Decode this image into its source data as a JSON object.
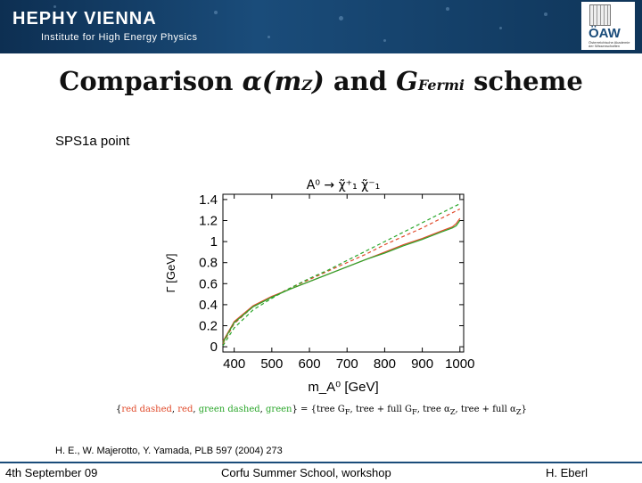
{
  "header": {
    "brand": "HEPHY VIENNA",
    "institute": "Institute for High Energy Physics",
    "logo_text": "ÖAW",
    "logo_sub": "Österreichische Akademie der Wissenschaften"
  },
  "slide": {
    "title_prefix": "Comparison",
    "title_mid": "and",
    "title_suffix": "scheme",
    "point": "SPS1a point",
    "reference": "H. E., W. Majerotto, Y. Yamada, PLB 597 (2004) 273"
  },
  "legend": {
    "lhs_items": [
      "red dashed",
      "red",
      "green dashed",
      "green"
    ],
    "rhs_items": [
      "tree G",
      "tree + full G",
      "tree α",
      "tree + full α"
    ]
  },
  "footer": {
    "date": "4th September 09",
    "event": "Corfu Summer School, workshop",
    "author": "H. Eberl"
  },
  "colors": {
    "red": "#e04a2a",
    "green": "#2aa62a",
    "header": "#1a4c7a"
  },
  "chart_data": {
    "type": "line",
    "title": "A⁰ → χ̃⁺₁ χ̃⁻₁",
    "xlabel": "m_A⁰ [GeV]",
    "ylabel": "Γ [GeV]",
    "xlim": [
      370,
      1010
    ],
    "ylim": [
      -0.05,
      1.45
    ],
    "xticks": [
      400,
      500,
      600,
      700,
      800,
      900,
      1000
    ],
    "yticks": [
      0,
      0.2,
      0.4,
      0.6,
      0.8,
      1,
      1.2,
      1.4
    ],
    "series": [
      {
        "color": "#e04a2a",
        "style": "dashed",
        "x": [
          370,
          400,
          450,
          500,
          550,
          600,
          650,
          700,
          750,
          800,
          850,
          900,
          950,
          1000
        ],
        "y": [
          0.03,
          0.22,
          0.38,
          0.47,
          0.56,
          0.64,
          0.72,
          0.8,
          0.88,
          0.97,
          1.05,
          1.13,
          1.22,
          1.31
        ]
      },
      {
        "color": "#e04a2a",
        "style": "solid",
        "x": [
          370,
          400,
          450,
          500,
          550,
          600,
          650,
          700,
          750,
          800,
          850,
          900,
          950,
          980,
          990,
          1000
        ],
        "y": [
          0.05,
          0.24,
          0.39,
          0.48,
          0.55,
          0.62,
          0.69,
          0.76,
          0.83,
          0.9,
          0.97,
          1.03,
          1.1,
          1.14,
          1.17,
          1.22
        ]
      },
      {
        "color": "#2aa62a",
        "style": "dashed",
        "x": [
          370,
          400,
          450,
          500,
          550,
          600,
          650,
          700,
          750,
          800,
          850,
          900,
          950,
          1000
        ],
        "y": [
          0.01,
          0.18,
          0.35,
          0.46,
          0.56,
          0.65,
          0.73,
          0.82,
          0.91,
          1.0,
          1.09,
          1.18,
          1.27,
          1.36
        ]
      },
      {
        "color": "#2aa62a",
        "style": "solid",
        "x": [
          370,
          400,
          450,
          500,
          550,
          600,
          650,
          700,
          750,
          800,
          850,
          900,
          950,
          980,
          990,
          1000
        ],
        "y": [
          0.04,
          0.23,
          0.38,
          0.47,
          0.55,
          0.62,
          0.69,
          0.76,
          0.83,
          0.89,
          0.96,
          1.02,
          1.09,
          1.13,
          1.15,
          1.2
        ]
      }
    ]
  }
}
